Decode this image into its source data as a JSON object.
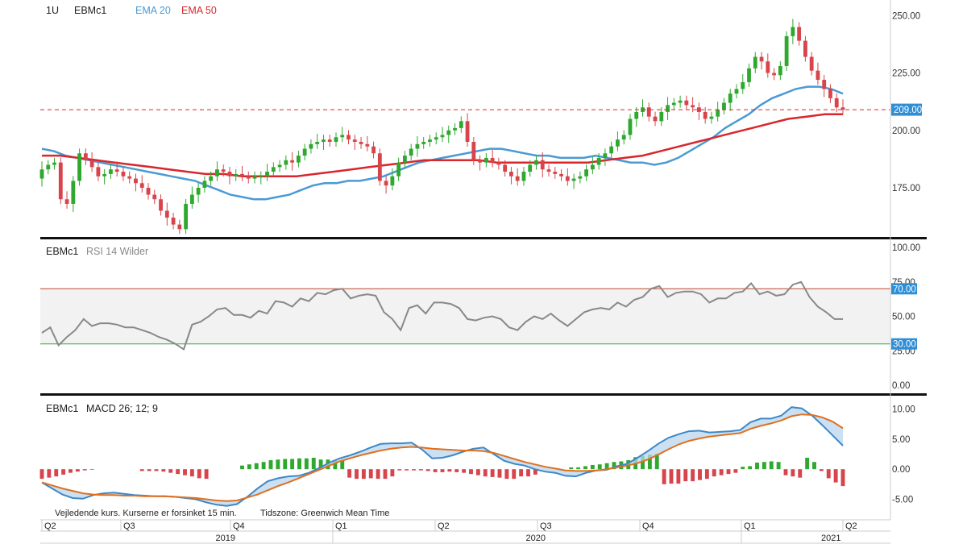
{
  "header": {
    "interval": "1U",
    "symbol": "EBMc1",
    "ema20_label": "EMA 20",
    "ema50_label": "EMA 50",
    "rsi_symbol": "EBMc1",
    "rsi_label": "RSI 14 Wilder",
    "macd_symbol": "EBMc1",
    "macd_label": "MACD 26; 12; 9"
  },
  "colors": {
    "up": "#2ea82e",
    "down": "#d8444b",
    "ema20": "#4a9ad4",
    "ema50": "#d9262c",
    "macd_line": "#3d88c8",
    "signal_line": "#e0701e",
    "price_badge": "#2f8fd6",
    "rsi_band": "#f2f2f2",
    "rsi_upper": "#b84a2a",
    "rsi_lower": "#3aa33a",
    "rsi_line": "#888888"
  },
  "footer": {
    "note": "Vejledende kurs. Kurserne er forsinket 15 min.",
    "timezone": "Tidszone: Greenwich Mean Time"
  },
  "chart_data": [
    {
      "panel": "price",
      "type": "candlestick",
      "title": "EBMc1",
      "interval": "1U",
      "ylim": [
        155,
        255
      ],
      "yticks": [
        "250.00",
        "225.00",
        "200.00",
        "175.00"
      ],
      "current_price_label": "209.00",
      "current_price": 209,
      "series_close": [
        183,
        185,
        186,
        170,
        168,
        178,
        190,
        187,
        184,
        180,
        181,
        183,
        182,
        180,
        179,
        177,
        175,
        172,
        170,
        165,
        162,
        159,
        157,
        168,
        172,
        175,
        178,
        180,
        183,
        182,
        180,
        181,
        180,
        179,
        180,
        180,
        182,
        184,
        185,
        187,
        186,
        189,
        192,
        194,
        195,
        196,
        195,
        197,
        198,
        196,
        195,
        194,
        193,
        190,
        178,
        176,
        180,
        186,
        189,
        192,
        194,
        195,
        196,
        197,
        198,
        200,
        201,
        204,
        195,
        187,
        186,
        188,
        186,
        185,
        182,
        180,
        178,
        182,
        185,
        187,
        183,
        182,
        181,
        180,
        178,
        179,
        180,
        183,
        185,
        188,
        190,
        193,
        196,
        198,
        205,
        208,
        210,
        206,
        204,
        208,
        211,
        212,
        213,
        211,
        210,
        208,
        205,
        206,
        209,
        212,
        216,
        218,
        221,
        227,
        232,
        230,
        225,
        224,
        228,
        241,
        245,
        239,
        232,
        226,
        222,
        218,
        214,
        210,
        209
      ],
      "series_open": [
        179,
        183,
        185,
        186,
        170,
        168,
        178,
        190,
        187,
        184,
        180,
        181,
        183,
        182,
        180,
        179,
        177,
        175,
        172,
        170,
        165,
        162,
        159,
        157,
        168,
        172,
        175,
        178,
        180,
        183,
        182,
        180,
        181,
        180,
        179,
        180,
        180,
        182,
        184,
        185,
        187,
        186,
        189,
        192,
        194,
        195,
        196,
        195,
        197,
        198,
        196,
        195,
        194,
        193,
        190,
        178,
        176,
        180,
        186,
        189,
        192,
        194,
        195,
        196,
        197,
        198,
        200,
        201,
        204,
        195,
        187,
        186,
        188,
        186,
        185,
        182,
        180,
        178,
        182,
        185,
        187,
        183,
        182,
        181,
        180,
        178,
        179,
        180,
        183,
        185,
        188,
        190,
        193,
        196,
        198,
        205,
        208,
        210,
        206,
        204,
        208,
        211,
        212,
        213,
        211,
        210,
        208,
        205,
        206,
        209,
        212,
        216,
        218,
        221,
        227,
        232,
        230,
        225,
        224,
        228,
        241,
        245,
        239,
        232,
        226,
        222,
        218,
        214,
        210
      ],
      "ema20": [
        192,
        191,
        189,
        188,
        187,
        186,
        185,
        184,
        183,
        182,
        181,
        180,
        179,
        178,
        176,
        174,
        172,
        171,
        170,
        170,
        171,
        172,
        174,
        176,
        177,
        177,
        178,
        178,
        179,
        180,
        182,
        184,
        186,
        187,
        188,
        189,
        190,
        191,
        192,
        192,
        191,
        190,
        189,
        189,
        188,
        188,
        188,
        189,
        188,
        187,
        186,
        186,
        185,
        186,
        188,
        191,
        194,
        197,
        201,
        204,
        207,
        211,
        214,
        216,
        218,
        219,
        219,
        218,
        216
      ],
      "ema50": [
        189,
        189,
        188,
        187,
        186,
        185,
        184,
        183,
        182,
        181,
        181,
        180,
        180,
        180,
        180,
        181,
        182,
        183,
        184,
        185,
        186,
        187,
        187,
        187,
        187,
        186,
        186,
        186,
        186,
        186,
        186,
        187,
        188,
        189,
        191,
        193,
        195,
        197,
        199,
        201,
        203,
        205,
        206,
        207,
        207
      ]
    },
    {
      "panel": "rsi",
      "type": "line",
      "title": "RSI 14 Wilder",
      "ylim": [
        0,
        100
      ],
      "yticks": [
        "100.00",
        "75.00",
        "50.00",
        "25.00",
        "0.00"
      ],
      "upper_level": 70,
      "lower_level": 30,
      "upper_label": "70.00",
      "lower_label": "30.00",
      "values": [
        38,
        42,
        29,
        35,
        40,
        48,
        43,
        45,
        45,
        44,
        42,
        42,
        40,
        38,
        35,
        33,
        30,
        26,
        44,
        46,
        50,
        55,
        56,
        51,
        51,
        49,
        54,
        52,
        61,
        60,
        57,
        63,
        61,
        67,
        66,
        69,
        70,
        63,
        65,
        66,
        65,
        53,
        48,
        40,
        56,
        58,
        52,
        60,
        60,
        59,
        56,
        48,
        47,
        49,
        50,
        48,
        42,
        40,
        46,
        50,
        48,
        52,
        47,
        43,
        48,
        53,
        55,
        56,
        55,
        60,
        57,
        62,
        64,
        70,
        72,
        64,
        67,
        68,
        68,
        66,
        60,
        63,
        63,
        67,
        68,
        74,
        66,
        68,
        65,
        66,
        73,
        75,
        64,
        57,
        53,
        48,
        48
      ]
    },
    {
      "panel": "macd",
      "type": "line+histogram",
      "title": "MACD 26; 12; 9",
      "ylim": [
        -6,
        11
      ],
      "yticks": [
        "10.00",
        "5.00",
        "0.00",
        "-5.00"
      ],
      "macd": [
        -2.2,
        -3.2,
        -4.2,
        -4.8,
        -4.9,
        -4.3,
        -4.0,
        -3.9,
        -4.1,
        -4.3,
        -4.4,
        -4.5,
        -4.5,
        -4.6,
        -4.8,
        -5.0,
        -5.5,
        -5.9,
        -6.1,
        -5.8,
        -4.6,
        -3.2,
        -2.0,
        -1.5,
        -1.2,
        -1.1,
        -0.6,
        0.2,
        1.1,
        1.8,
        2.3,
        2.9,
        3.6,
        4.2,
        4.3,
        4.3,
        4.4,
        3.3,
        1.8,
        1.9,
        2.3,
        2.9,
        3.4,
        3.6,
        2.5,
        1.4,
        0.9,
        0.6,
        0.0,
        -0.4,
        -0.6,
        -1.1,
        -1.2,
        -0.6,
        -0.2,
        -0.1,
        0.5,
        0.9,
        1.9,
        3.0,
        4.2,
        5.2,
        5.8,
        6.3,
        6.4,
        6.1,
        6.2,
        6.3,
        6.5,
        7.8,
        8.4,
        8.4,
        8.9,
        10.3,
        10.1,
        8.9,
        7.3,
        5.6,
        3.9
      ],
      "signal": [
        -2.2,
        -2.7,
        -3.2,
        -3.6,
        -4.0,
        -4.2,
        -4.3,
        -4.3,
        -4.4,
        -4.4,
        -4.5,
        -4.5,
        -4.5,
        -4.6,
        -4.7,
        -4.8,
        -5.0,
        -5.2,
        -5.3,
        -5.2,
        -4.7,
        -4.2,
        -3.5,
        -2.8,
        -2.2,
        -1.5,
        -0.8,
        -0.1,
        0.6,
        1.3,
        1.8,
        2.3,
        2.7,
        3.1,
        3.4,
        3.6,
        3.7,
        3.6,
        3.4,
        3.3,
        3.2,
        3.1,
        3.1,
        3.0,
        2.7,
        2.2,
        1.7,
        1.2,
        0.8,
        0.4,
        0.1,
        -0.2,
        -0.3,
        -0.3,
        -0.2,
        0.0,
        0.3,
        0.6,
        1.0,
        1.6,
        2.4,
        3.3,
        4.1,
        4.7,
        5.1,
        5.4,
        5.6,
        5.8,
        6.0,
        6.7,
        7.2,
        7.6,
        8.1,
        8.8,
        9.1,
        9.0,
        8.6,
        7.9,
        6.8
      ],
      "histogram": [
        -1.6,
        -1.4,
        -1.2,
        -0.9,
        -0.6,
        -0.4,
        -0.2,
        -0.1,
        0,
        0,
        0,
        0,
        0,
        0,
        -0.3,
        -0.3,
        -0.3,
        -0.4,
        -0.6,
        -0.8,
        -1.0,
        -1.2,
        -1.5,
        -1.6,
        0,
        0,
        0,
        0,
        0.6,
        0.8,
        1.0,
        1.2,
        1.5,
        1.6,
        1.7,
        1.7,
        1.8,
        1.8,
        1.9,
        1.6,
        1.6,
        1.5,
        1.4,
        -1.4,
        -1.6,
        -1.6,
        -1.5,
        -1.6,
        -1.6,
        -1.2,
        -0.2,
        -0.2,
        -0.2,
        -0.2,
        -0.3,
        -0.5,
        -0.5,
        -0.4,
        -0.5,
        -0.6,
        -0.8,
        -1.0,
        -1.2,
        -1.3,
        -1.4,
        -1.6,
        -1.6,
        -1.2,
        -1.2,
        -0.9,
        0,
        0,
        0,
        0,
        0.3,
        0.3,
        0.5,
        0.7,
        0.8,
        1.0,
        1.2,
        1.3,
        1.5,
        2.0,
        2.2,
        2.4,
        2.6,
        -2.5,
        -2.4,
        -2.4,
        -2.0,
        -2.0,
        -1.8,
        -1.6,
        -1.2,
        -1.0,
        -0.8,
        -0.6,
        0.4,
        0.5,
        1.1,
        1.2,
        1.3,
        1.2,
        -1.0,
        -1.2,
        -1.4,
        1.9,
        1.2,
        -0.3,
        -1.5,
        -2.2,
        -2.8
      ]
    }
  ],
  "time_axis": {
    "quarters": [
      "Q2",
      "Q3",
      "Q4",
      "Q1",
      "Q2",
      "Q3",
      "Q4",
      "Q1",
      "Q2"
    ],
    "years": [
      "2019",
      "2020",
      "2021"
    ]
  }
}
